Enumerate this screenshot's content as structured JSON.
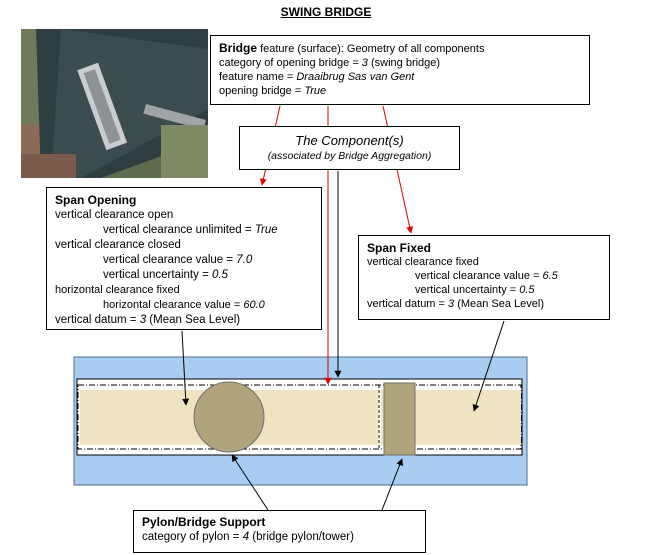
{
  "title": "SWING BRIDGE",
  "bridge_box": {
    "heading": "Bridge",
    "heading_rest": " feature (surface): Geometry of all components",
    "line2_label": "category of opening bridge = ",
    "line2_value": "3",
    "line2_suffix": " (swing bridge)",
    "line3_label": "feature name = ",
    "line3_value": "Draaibrug Sas van Gent",
    "line4_label": "opening bridge = ",
    "line4_value": "True"
  },
  "component_box": {
    "title": "The Component(s)",
    "subtitle": "(associated by Bridge Aggregation)"
  },
  "span_opening": {
    "heading": "Span Opening",
    "l1": "vertical clearance open",
    "l2_label": "vertical clearance unlimited = ",
    "l2_value": "True",
    "l3": "vertical clearance closed",
    "l4_label": "vertical clearance value = ",
    "l4_value": "7.0",
    "l5_label": "vertical uncertainty = ",
    "l5_value": "0.5",
    "l6": "horizontal clearance fixed",
    "l7_label": "horizontal clearance value = ",
    "l7_value": "60.0",
    "l8_label": "vertical datum = ",
    "l8_value": "3",
    "l8_suffix": " (Mean Sea Level)"
  },
  "span_fixed": {
    "heading": "Span Fixed",
    "l1": "vertical clearance fixed",
    "l2_label": "vertical clearance value = ",
    "l2_value": "6.5",
    "l3_label": "vertical uncertainty = ",
    "l3_value": "0.5",
    "l4_label": "vertical datum = ",
    "l4_value": "3",
    "l4_suffix": " (Mean Sea Level)"
  },
  "pylon": {
    "heading": "Pylon/Bridge Support",
    "l1_label": "category of pylon = ",
    "l1_value": "4",
    "l1_suffix": " (bridge pylon/tower)"
  },
  "colors": {
    "water": "#a9cdf2",
    "deck": "#efe3c1",
    "pylon": "#b1a37b",
    "arrow_red": "#e00000"
  }
}
